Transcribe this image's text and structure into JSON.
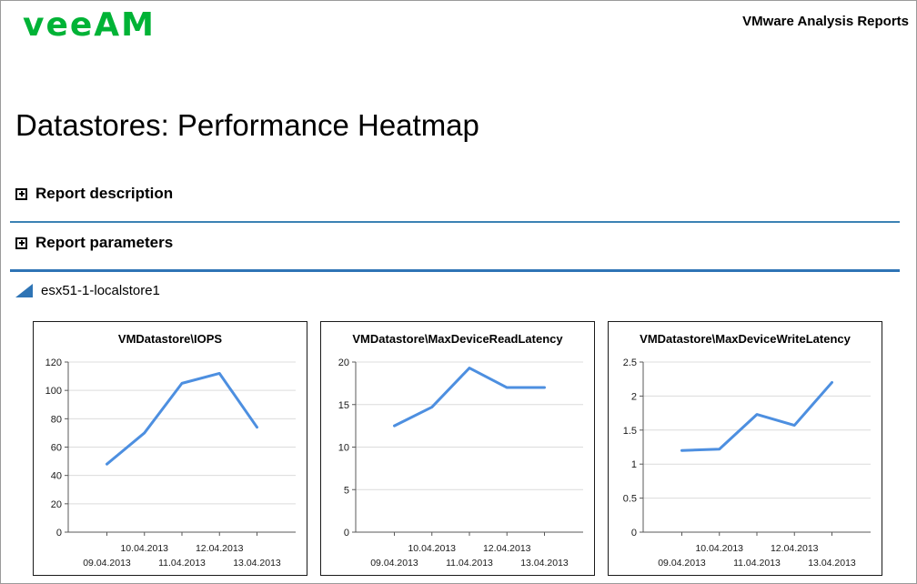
{
  "page": {
    "logo_text": "veeAM",
    "header_right": "VMware Analysis Reports",
    "title": "Datastores: Performance Heatmap",
    "sections": {
      "description_label": "Report description",
      "parameters_label": "Report parameters"
    },
    "datastore_label": "esx51-1-localstore1"
  },
  "colors": {
    "brand_green": "#00B336",
    "divider_thin_blue": "#3c82b4",
    "divider_thick_blue": "#2e74b5",
    "triangle_blue": "#2e74b5",
    "chart_line_blue": "#4d8fe0",
    "gridline_gray": "#dcdcdc",
    "axis_gray": "#595959"
  },
  "chart_data": [
    {
      "type": "line",
      "title": "VMDatastore\\IOPS",
      "x": [
        "09.04.2013",
        "10.04.2013",
        "11.04.2013",
        "12.04.2013",
        "13.04.2013"
      ],
      "values": [
        48,
        70,
        105,
        112,
        74
      ],
      "ylim": [
        0,
        120
      ],
      "ytick_step": 20,
      "xlabel": "",
      "ylabel": "",
      "grid": true,
      "legend": "none"
    },
    {
      "type": "line",
      "title": "VMDatastore\\MaxDeviceReadLatency",
      "x": [
        "09.04.2013",
        "10.04.2013",
        "11.04.2013",
        "12.04.2013",
        "13.04.2013"
      ],
      "values": [
        12.5,
        14.7,
        19.3,
        17,
        17
      ],
      "ylim": [
        0,
        20
      ],
      "ytick_step": 5,
      "xlabel": "",
      "ylabel": "",
      "grid": true,
      "legend": "none"
    },
    {
      "type": "line",
      "title": "VMDatastore\\MaxDeviceWriteLatency",
      "x": [
        "09.04.2013",
        "10.04.2013",
        "11.04.2013",
        "12.04.2013",
        "13.04.2013"
      ],
      "values": [
        1.2,
        1.22,
        1.73,
        1.57,
        2.2
      ],
      "ylim": [
        0,
        2.5
      ],
      "ytick_step": 0.5,
      "xlabel": "",
      "ylabel": "",
      "grid": true,
      "legend": "none"
    }
  ]
}
